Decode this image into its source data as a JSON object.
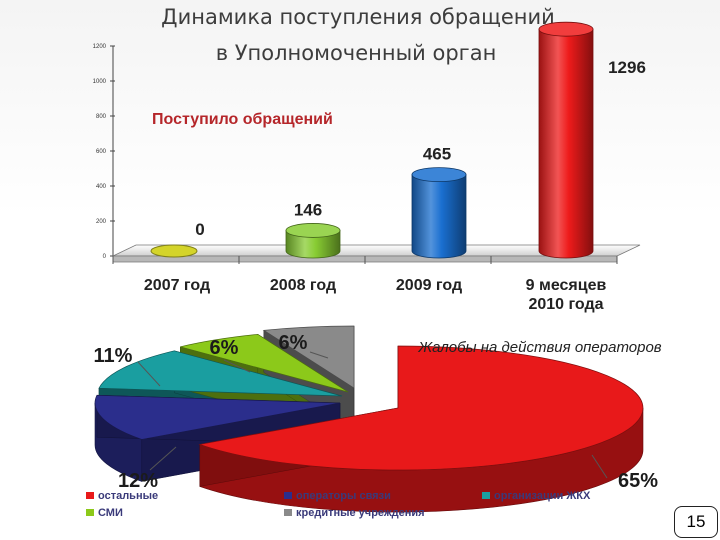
{
  "slide": {
    "title_line1": "Динамика поступления обращений",
    "title_line2": "в Уполномоченный орган",
    "page_number": "15"
  },
  "chart_data": [
    {
      "type": "bar",
      "title": "Поступило обращений",
      "categories": [
        "2007 год",
        "2008 год",
        "2009 год",
        "9 месяцев 2010 года"
      ],
      "values": [
        0,
        146,
        465,
        1296
      ],
      "value_labels": [
        "0",
        "146",
        "465",
        "1296"
      ],
      "colors": [
        "#d4d42a",
        "#88cc33",
        "#1a6fd0",
        "#ee1b1b"
      ],
      "ylim": [
        0,
        1200
      ],
      "yticks": [
        "0",
        "200",
        "400",
        "600",
        "800",
        "1000",
        "1200"
      ],
      "xlabel": "",
      "ylabel": ""
    },
    {
      "type": "pie",
      "title": "Жалобы на действия операторов",
      "slices": [
        {
          "name": "остальные",
          "value": 65,
          "label": "65%",
          "color": "#e8191a"
        },
        {
          "name": "операторы связи",
          "value": 12,
          "label": "12%",
          "color": "#2b2e8c"
        },
        {
          "name": "организации ЖКХ",
          "value": 11,
          "label": "11%",
          "color": "#1a9ea0"
        },
        {
          "name": "СМИ",
          "value": 6,
          "label": "6%",
          "color": "#8cc91a"
        },
        {
          "name": "кредитные учреждения",
          "value": 6,
          "label": "6%",
          "color": "#8a8a8a"
        }
      ],
      "legend_order": [
        "остальные",
        "операторы связи",
        "организации ЖКХ",
        "СМИ",
        "кредитные учреждения"
      ]
    }
  ]
}
